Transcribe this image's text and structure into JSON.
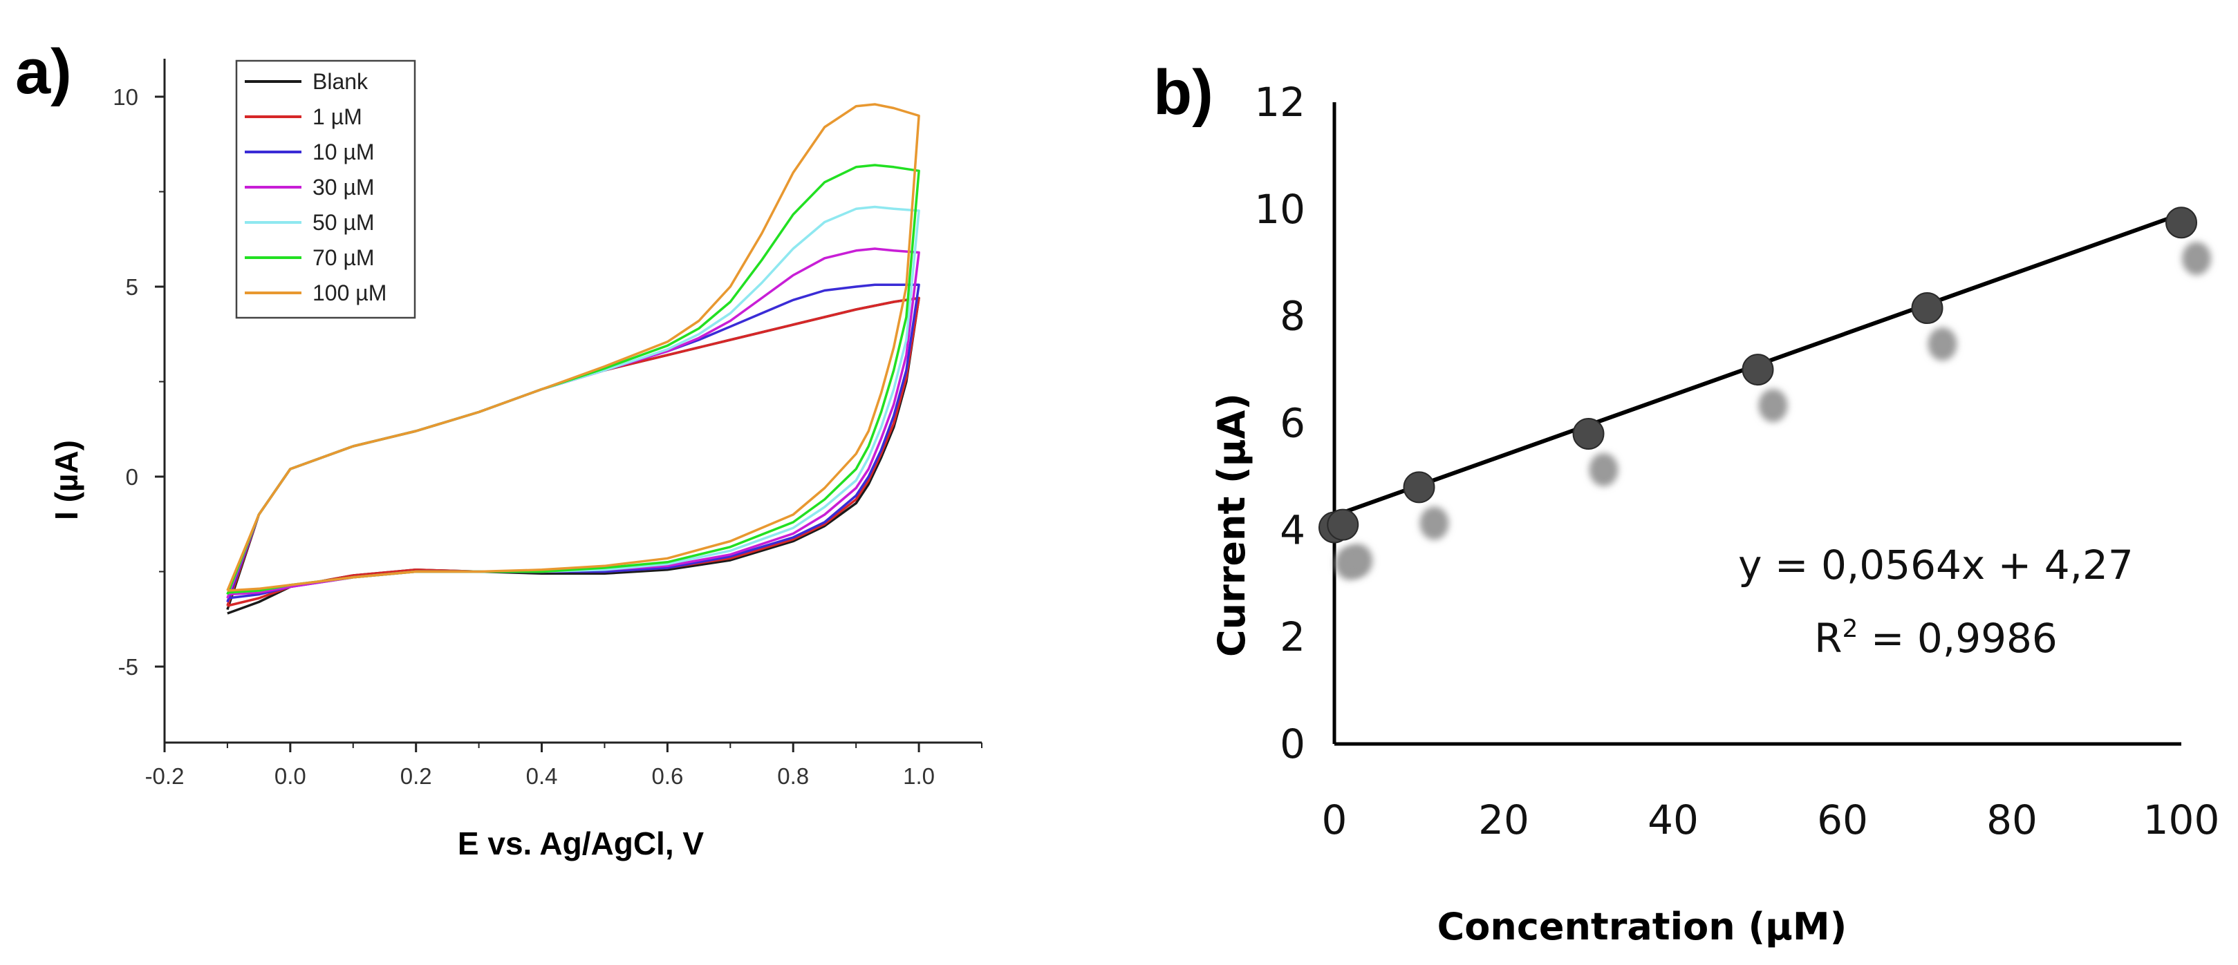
{
  "panel_a_label": "a)",
  "panel_b_label": "b)",
  "chart_data": [
    {
      "type": "line",
      "title": "",
      "xlabel": "E vs. Ag/AgCl, V",
      "ylabel": "I (µA)",
      "xlim": [
        -0.2,
        1.1
      ],
      "ylim": [
        -7,
        11
      ],
      "xticks": [
        "-0.2",
        "0.0",
        "0.2",
        "0.4",
        "0.6",
        "0.8",
        "1.0"
      ],
      "xtick_values": [
        -0.2,
        0.0,
        0.2,
        0.4,
        0.6,
        0.8,
        1.0
      ],
      "yticks": [
        "-5",
        "0",
        "5",
        "10"
      ],
      "ytick_values": [
        -5,
        0,
        5,
        10
      ],
      "legend_position": "top-left",
      "x_forward": [
        -0.1,
        -0.05,
        0.0,
        0.1,
        0.2,
        0.3,
        0.4,
        0.5,
        0.6,
        0.65,
        0.7,
        0.75,
        0.8,
        0.85,
        0.9,
        0.93,
        0.96,
        1.0
      ],
      "x_reverse": [
        1.0,
        0.98,
        0.96,
        0.94,
        0.92,
        0.9,
        0.85,
        0.8,
        0.7,
        0.6,
        0.5,
        0.4,
        0.3,
        0.2,
        0.1,
        0.0,
        -0.05,
        -0.1
      ],
      "series": [
        {
          "name": "Blank",
          "color": "#1a1a1a",
          "forward": [
            -3.5,
            -1.0,
            0.2,
            0.8,
            1.2,
            1.7,
            2.3,
            2.8,
            3.2,
            3.4,
            3.6,
            3.8,
            4.0,
            4.2,
            4.4,
            4.5,
            4.6,
            4.7
          ],
          "reverse": [
            4.7,
            2.5,
            1.3,
            0.5,
            -0.2,
            -0.7,
            -1.3,
            -1.7,
            -2.2,
            -2.45,
            -2.55,
            -2.55,
            -2.5,
            -2.45,
            -2.6,
            -2.9,
            -3.3,
            -3.6
          ]
        },
        {
          "name": "1 µM",
          "color": "#d62728",
          "forward": [
            -3.4,
            -1.0,
            0.2,
            0.8,
            1.2,
            1.7,
            2.3,
            2.8,
            3.2,
            3.4,
            3.6,
            3.8,
            4.0,
            4.2,
            4.4,
            4.5,
            4.6,
            4.7
          ],
          "reverse": [
            4.7,
            2.6,
            1.4,
            0.6,
            -0.1,
            -0.6,
            -1.25,
            -1.65,
            -2.15,
            -2.4,
            -2.5,
            -2.5,
            -2.5,
            -2.45,
            -2.6,
            -2.9,
            -3.2,
            -3.4
          ]
        },
        {
          "name": "10 µM",
          "color": "#3a2cd6",
          "forward": [
            -3.3,
            -1.0,
            0.2,
            0.8,
            1.2,
            1.7,
            2.3,
            2.8,
            3.3,
            3.6,
            3.95,
            4.3,
            4.65,
            4.9,
            5.0,
            5.05,
            5.05,
            5.05
          ],
          "reverse": [
            5.05,
            2.8,
            1.6,
            0.7,
            0.0,
            -0.5,
            -1.2,
            -1.6,
            -2.1,
            -2.4,
            -2.5,
            -2.5,
            -2.5,
            -2.5,
            -2.65,
            -2.9,
            -3.1,
            -3.2
          ]
        },
        {
          "name": "30 µM",
          "color": "#c81ed6",
          "forward": [
            -3.2,
            -1.0,
            0.2,
            0.8,
            1.2,
            1.7,
            2.3,
            2.8,
            3.3,
            3.65,
            4.1,
            4.7,
            5.3,
            5.75,
            5.95,
            6.0,
            5.95,
            5.9
          ],
          "reverse": [
            5.9,
            3.2,
            1.9,
            1.0,
            0.2,
            -0.3,
            -1.0,
            -1.5,
            -2.05,
            -2.35,
            -2.45,
            -2.5,
            -2.5,
            -2.5,
            -2.65,
            -2.9,
            -3.05,
            -3.1
          ]
        },
        {
          "name": "50 µM",
          "color": "#8fe8f0",
          "forward": [
            -3.1,
            -1.0,
            0.2,
            0.8,
            1.2,
            1.7,
            2.3,
            2.8,
            3.35,
            3.75,
            4.3,
            5.1,
            6.0,
            6.7,
            7.05,
            7.1,
            7.05,
            7.0
          ],
          "reverse": [
            7.0,
            3.6,
            2.3,
            1.3,
            0.5,
            -0.1,
            -0.8,
            -1.35,
            -1.95,
            -2.3,
            -2.45,
            -2.5,
            -2.5,
            -2.5,
            -2.65,
            -2.85,
            -3.0,
            -3.05
          ]
        },
        {
          "name": "70 µM",
          "color": "#22e022",
          "forward": [
            -3.1,
            -1.0,
            0.2,
            0.8,
            1.2,
            1.7,
            2.3,
            2.85,
            3.45,
            3.9,
            4.6,
            5.7,
            6.9,
            7.75,
            8.15,
            8.2,
            8.15,
            8.05
          ],
          "reverse": [
            8.05,
            4.2,
            2.8,
            1.7,
            0.8,
            0.2,
            -0.6,
            -1.2,
            -1.85,
            -2.25,
            -2.4,
            -2.5,
            -2.5,
            -2.5,
            -2.65,
            -2.85,
            -3.0,
            -3.05
          ]
        },
        {
          "name": "100 µM",
          "color": "#e89830",
          "forward": [
            -3.0,
            -1.0,
            0.2,
            0.8,
            1.2,
            1.7,
            2.3,
            2.9,
            3.55,
            4.1,
            5.0,
            6.4,
            8.0,
            9.2,
            9.75,
            9.8,
            9.7,
            9.5
          ],
          "reverse": [
            9.5,
            5.0,
            3.4,
            2.2,
            1.2,
            0.6,
            -0.3,
            -1.0,
            -1.7,
            -2.15,
            -2.35,
            -2.45,
            -2.5,
            -2.5,
            -2.65,
            -2.85,
            -2.95,
            -3.0
          ]
        }
      ]
    },
    {
      "type": "scatter",
      "title": "",
      "xlabel": "Concentration (µM)",
      "ylabel": "Current  (µA)",
      "xlim": [
        0,
        100
      ],
      "ylim": [
        0,
        12
      ],
      "xticks": [
        "0",
        "20",
        "40",
        "60",
        "80",
        "100"
      ],
      "xtick_values": [
        0,
        20,
        40,
        60,
        80,
        100
      ],
      "yticks": [
        "0",
        "2",
        "4",
        "6",
        "8",
        "10",
        "12"
      ],
      "ytick_values": [
        0,
        2,
        4,
        6,
        8,
        10,
        12
      ],
      "points": [
        {
          "x": 0,
          "y": 4.05
        },
        {
          "x": 1,
          "y": 4.1
        },
        {
          "x": 10,
          "y": 4.8
        },
        {
          "x": 30,
          "y": 5.8
        },
        {
          "x": 50,
          "y": 7.0
        },
        {
          "x": 70,
          "y": 8.15
        },
        {
          "x": 100,
          "y": 9.75
        }
      ],
      "trendline": {
        "slope": 0.0564,
        "intercept": 4.27
      },
      "equation": "y = 0,0564x + 4,27",
      "r2_prefix": "R",
      "r2_sup": "2",
      "r2_value": " = 0,9986",
      "point_color": "#4a4a4a",
      "line_color": "#000000"
    }
  ]
}
